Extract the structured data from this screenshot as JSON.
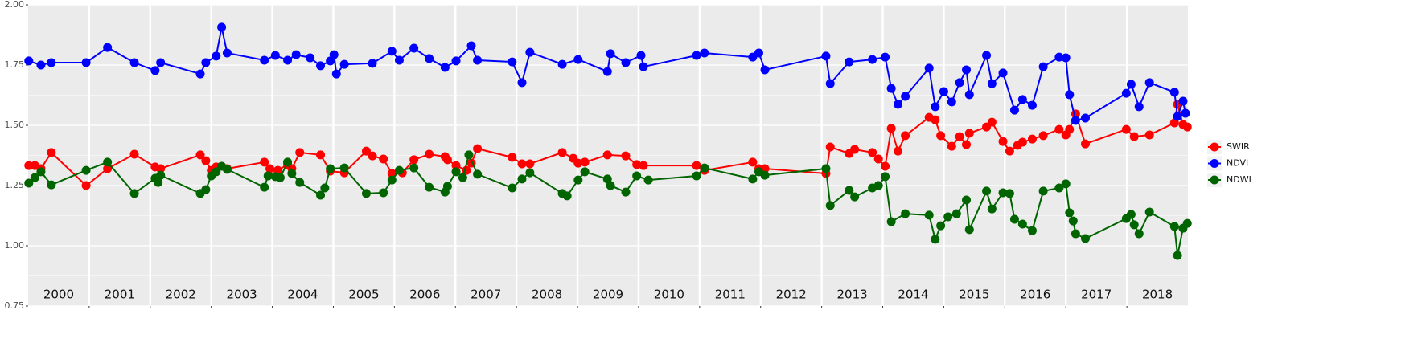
{
  "chart_data": {
    "type": "line",
    "year_labels": [
      "2000",
      "2001",
      "2002",
      "2003",
      "2004",
      "2005",
      "2006",
      "2007",
      "2008",
      "2009",
      "2010",
      "2011",
      "2012",
      "2013",
      "2014",
      "2015",
      "2016",
      "2017",
      "2018"
    ],
    "xlim": [
      2000,
      2019
    ],
    "xticks": [
      2001,
      2002,
      2003,
      2004,
      2005,
      2006,
      2007,
      2008,
      2009,
      2010,
      2011,
      2012,
      2013,
      2014,
      2015,
      2016,
      2017,
      2018
    ],
    "ylim": [
      0.75,
      2.0
    ],
    "yticks": [
      {
        "value": 0.75,
        "label": "0.75"
      },
      {
        "value": 1.0,
        "label": "1.00"
      },
      {
        "value": 1.25,
        "label": "1.25"
      },
      {
        "value": 1.5,
        "label": "1.50"
      },
      {
        "value": 1.75,
        "label": "1.75"
      },
      {
        "value": 2.0,
        "label": "2.00"
      }
    ],
    "grid": true,
    "legend": "right",
    "series": [
      {
        "name": "SWIR",
        "color": "#ff0000",
        "x": [
          2000.01,
          2000.11,
          2000.21,
          2000.38,
          2000.95,
          2001.3,
          2001.74,
          2002.08,
          2002.17,
          2002.82,
          2002.91,
          2003.0,
          2003.08,
          2003.26,
          2003.87,
          2003.96,
          2004.09,
          2004.25,
          2004.32,
          2004.45,
          2004.79,
          2004.95,
          2005.18,
          2005.54,
          2005.64,
          2005.82,
          2005.96,
          2006.13,
          2006.32,
          2006.57,
          2006.83,
          2006.87,
          2007.01,
          2007.18,
          2007.26,
          2007.36,
          2007.93,
          2008.09,
          2008.22,
          2008.75,
          2008.93,
          2009.01,
          2009.12,
          2009.49,
          2009.79,
          2009.97,
          2010.08,
          2010.95,
          2011.08,
          2011.87,
          2011.97,
          2012.07,
          2013.07,
          2013.14,
          2013.45,
          2013.54,
          2013.83,
          2013.93,
          2014.04,
          2014.14,
          2014.25,
          2014.37,
          2014.76,
          2014.86,
          2014.95,
          2015.13,
          2015.26,
          2015.37,
          2015.42,
          2015.7,
          2015.79,
          2015.97,
          2016.08,
          2016.21,
          2016.29,
          2016.45,
          2016.63,
          2016.89,
          2017.0,
          2017.06,
          2017.16,
          2017.32,
          2017.99,
          2018.12,
          2018.37,
          2018.78,
          2018.83,
          2018.92,
          2018.99
        ],
        "values": [
          1.333,
          1.333,
          1.32,
          1.387,
          1.25,
          1.32,
          1.38,
          1.327,
          1.32,
          1.377,
          1.353,
          1.313,
          1.327,
          1.32,
          1.347,
          1.32,
          1.313,
          1.337,
          1.32,
          1.387,
          1.377,
          1.31,
          1.303,
          1.393,
          1.373,
          1.36,
          1.3,
          1.303,
          1.357,
          1.38,
          1.37,
          1.357,
          1.333,
          1.313,
          1.343,
          1.403,
          1.367,
          1.34,
          1.34,
          1.387,
          1.363,
          1.343,
          1.347,
          1.377,
          1.373,
          1.337,
          1.333,
          1.333,
          1.313,
          1.347,
          1.32,
          1.32,
          1.3,
          1.41,
          1.383,
          1.4,
          1.387,
          1.36,
          1.33,
          1.487,
          1.393,
          1.457,
          1.533,
          1.523,
          1.457,
          1.413,
          1.453,
          1.42,
          1.467,
          1.493,
          1.513,
          1.433,
          1.393,
          1.417,
          1.43,
          1.443,
          1.457,
          1.483,
          1.46,
          1.483,
          1.547,
          1.423,
          1.483,
          1.453,
          1.46,
          1.51,
          1.587,
          1.503,
          1.493
        ]
      },
      {
        "name": "NDVI",
        "color": "#0000ff",
        "x": [
          2000.01,
          2000.21,
          2000.38,
          2000.95,
          2001.3,
          2001.74,
          2002.08,
          2002.17,
          2002.82,
          2002.91,
          2003.08,
          2003.17,
          2003.26,
          2003.87,
          2004.05,
          2004.25,
          2004.39,
          2004.62,
          2004.79,
          2004.95,
          2005.01,
          2005.05,
          2005.18,
          2005.64,
          2005.96,
          2006.08,
          2006.32,
          2006.57,
          2006.83,
          2007.01,
          2007.26,
          2007.36,
          2007.93,
          2008.09,
          2008.22,
          2008.75,
          2009.01,
          2009.49,
          2009.54,
          2009.79,
          2010.04,
          2010.08,
          2010.95,
          2011.08,
          2011.87,
          2011.97,
          2012.07,
          2013.07,
          2013.14,
          2013.45,
          2013.83,
          2014.04,
          2014.14,
          2014.25,
          2014.37,
          2014.76,
          2014.86,
          2015.0,
          2015.13,
          2015.26,
          2015.37,
          2015.42,
          2015.7,
          2015.79,
          2015.97,
          2016.16,
          2016.29,
          2016.45,
          2016.63,
          2016.89,
          2017.0,
          2017.06,
          2017.16,
          2017.32,
          2017.99,
          2018.07,
          2018.2,
          2018.37,
          2018.78,
          2018.83,
          2018.92,
          2018.96
        ],
        "values": [
          1.767,
          1.75,
          1.76,
          1.76,
          1.823,
          1.76,
          1.727,
          1.76,
          1.713,
          1.76,
          1.787,
          1.907,
          1.8,
          1.77,
          1.79,
          1.77,
          1.793,
          1.78,
          1.747,
          1.767,
          1.793,
          1.713,
          1.753,
          1.757,
          1.807,
          1.77,
          1.82,
          1.777,
          1.74,
          1.767,
          1.83,
          1.77,
          1.763,
          1.677,
          1.803,
          1.753,
          1.773,
          1.723,
          1.797,
          1.76,
          1.79,
          1.743,
          1.79,
          1.8,
          1.783,
          1.8,
          1.73,
          1.787,
          1.673,
          1.763,
          1.773,
          1.783,
          1.653,
          1.587,
          1.62,
          1.737,
          1.577,
          1.64,
          1.597,
          1.677,
          1.73,
          1.627,
          1.79,
          1.673,
          1.717,
          1.563,
          1.607,
          1.583,
          1.743,
          1.783,
          1.78,
          1.627,
          1.52,
          1.53,
          1.633,
          1.67,
          1.577,
          1.677,
          1.637,
          1.537,
          1.6,
          1.55
        ]
      },
      {
        "name": "NDWI",
        "color": "#006400",
        "x": [
          2000.01,
          2000.11,
          2000.21,
          2000.38,
          2000.95,
          2001.3,
          2001.74,
          2002.08,
          2002.13,
          2002.17,
          2002.82,
          2002.91,
          2003.0,
          2003.08,
          2003.17,
          2003.26,
          2003.87,
          2003.93,
          2004.05,
          2004.13,
          2004.25,
          2004.32,
          2004.45,
          2004.79,
          2004.86,
          2004.95,
          2005.18,
          2005.54,
          2005.82,
          2005.96,
          2006.08,
          2006.32,
          2006.57,
          2006.83,
          2006.87,
          2007.01,
          2007.12,
          2007.22,
          2007.36,
          2007.93,
          2008.09,
          2008.22,
          2008.75,
          2008.83,
          2009.01,
          2009.12,
          2009.49,
          2009.54,
          2009.79,
          2009.97,
          2010.16,
          2010.95,
          2011.08,
          2011.87,
          2011.97,
          2012.07,
          2013.07,
          2013.14,
          2013.45,
          2013.54,
          2013.83,
          2013.93,
          2014.04,
          2014.14,
          2014.37,
          2014.76,
          2014.86,
          2014.95,
          2015.07,
          2015.21,
          2015.37,
          2015.42,
          2015.7,
          2015.79,
          2015.97,
          2016.08,
          2016.16,
          2016.29,
          2016.45,
          2016.63,
          2016.89,
          2017.0,
          2017.06,
          2017.12,
          2017.16,
          2017.32,
          2017.99,
          2018.07,
          2018.12,
          2018.2,
          2018.37,
          2018.78,
          2018.83,
          2018.92,
          2018.99
        ],
        "values": [
          1.26,
          1.283,
          1.307,
          1.253,
          1.313,
          1.347,
          1.217,
          1.28,
          1.263,
          1.293,
          1.217,
          1.233,
          1.29,
          1.307,
          1.33,
          1.317,
          1.243,
          1.29,
          1.287,
          1.283,
          1.347,
          1.3,
          1.263,
          1.21,
          1.24,
          1.32,
          1.323,
          1.217,
          1.22,
          1.273,
          1.313,
          1.323,
          1.243,
          1.223,
          1.247,
          1.307,
          1.283,
          1.377,
          1.297,
          1.24,
          1.277,
          1.303,
          1.217,
          1.207,
          1.273,
          1.307,
          1.277,
          1.25,
          1.223,
          1.29,
          1.273,
          1.29,
          1.323,
          1.277,
          1.307,
          1.293,
          1.32,
          1.167,
          1.23,
          1.203,
          1.24,
          1.25,
          1.287,
          1.1,
          1.133,
          1.127,
          1.027,
          1.083,
          1.12,
          1.133,
          1.19,
          1.067,
          1.227,
          1.153,
          1.22,
          1.217,
          1.11,
          1.09,
          1.063,
          1.227,
          1.24,
          1.257,
          1.137,
          1.103,
          1.05,
          1.03,
          1.113,
          1.13,
          1.087,
          1.05,
          1.14,
          1.08,
          0.96,
          1.073,
          1.093
        ]
      }
    ]
  }
}
